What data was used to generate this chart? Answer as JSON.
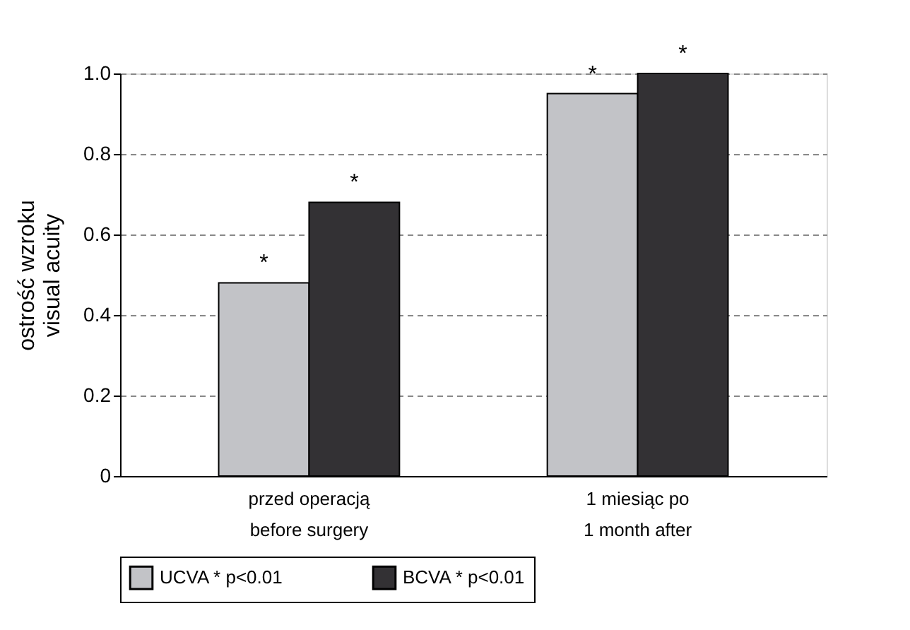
{
  "chart_data": {
    "type": "bar",
    "categories": [
      "przed operacją\nbefore surgery",
      "1 miesiąc po\n1 month after"
    ],
    "series": [
      {
        "name": "UCVA * p<0.01",
        "color": "#c2c3c7",
        "values": [
          0.48,
          0.95
        ]
      },
      {
        "name": "BCVA * p<0.01",
        "color": "#333134",
        "values": [
          0.68,
          1.0
        ]
      }
    ],
    "ylabel": "ostrość wzroku\nvisual acuity",
    "ylim": [
      0,
      1.0
    ],
    "yticks": [
      {
        "value": 0,
        "label": "0"
      },
      {
        "value": 0.2,
        "label": "0.2"
      },
      {
        "value": 0.4,
        "label": "0.4"
      },
      {
        "value": 0.6,
        "label": "0.6"
      },
      {
        "value": 0.8,
        "label": "0.8"
      },
      {
        "value": 1.0,
        "label": "1.0"
      }
    ],
    "grid": "y",
    "legend": "bottom",
    "annotations": [
      {
        "text": "*",
        "x": "przed operacją\nbefore surgery",
        "y": 0.48
      },
      {
        "text": "*",
        "x": "przed operacją\nbefore surgery",
        "y": 0.68
      },
      {
        "text": "*",
        "x": "1 miesiąc po\n1 month after",
        "y": 0.95
      },
      {
        "text": "*",
        "x": "1 miesiąc po\n1 month after",
        "y": 1.0
      }
    ]
  }
}
